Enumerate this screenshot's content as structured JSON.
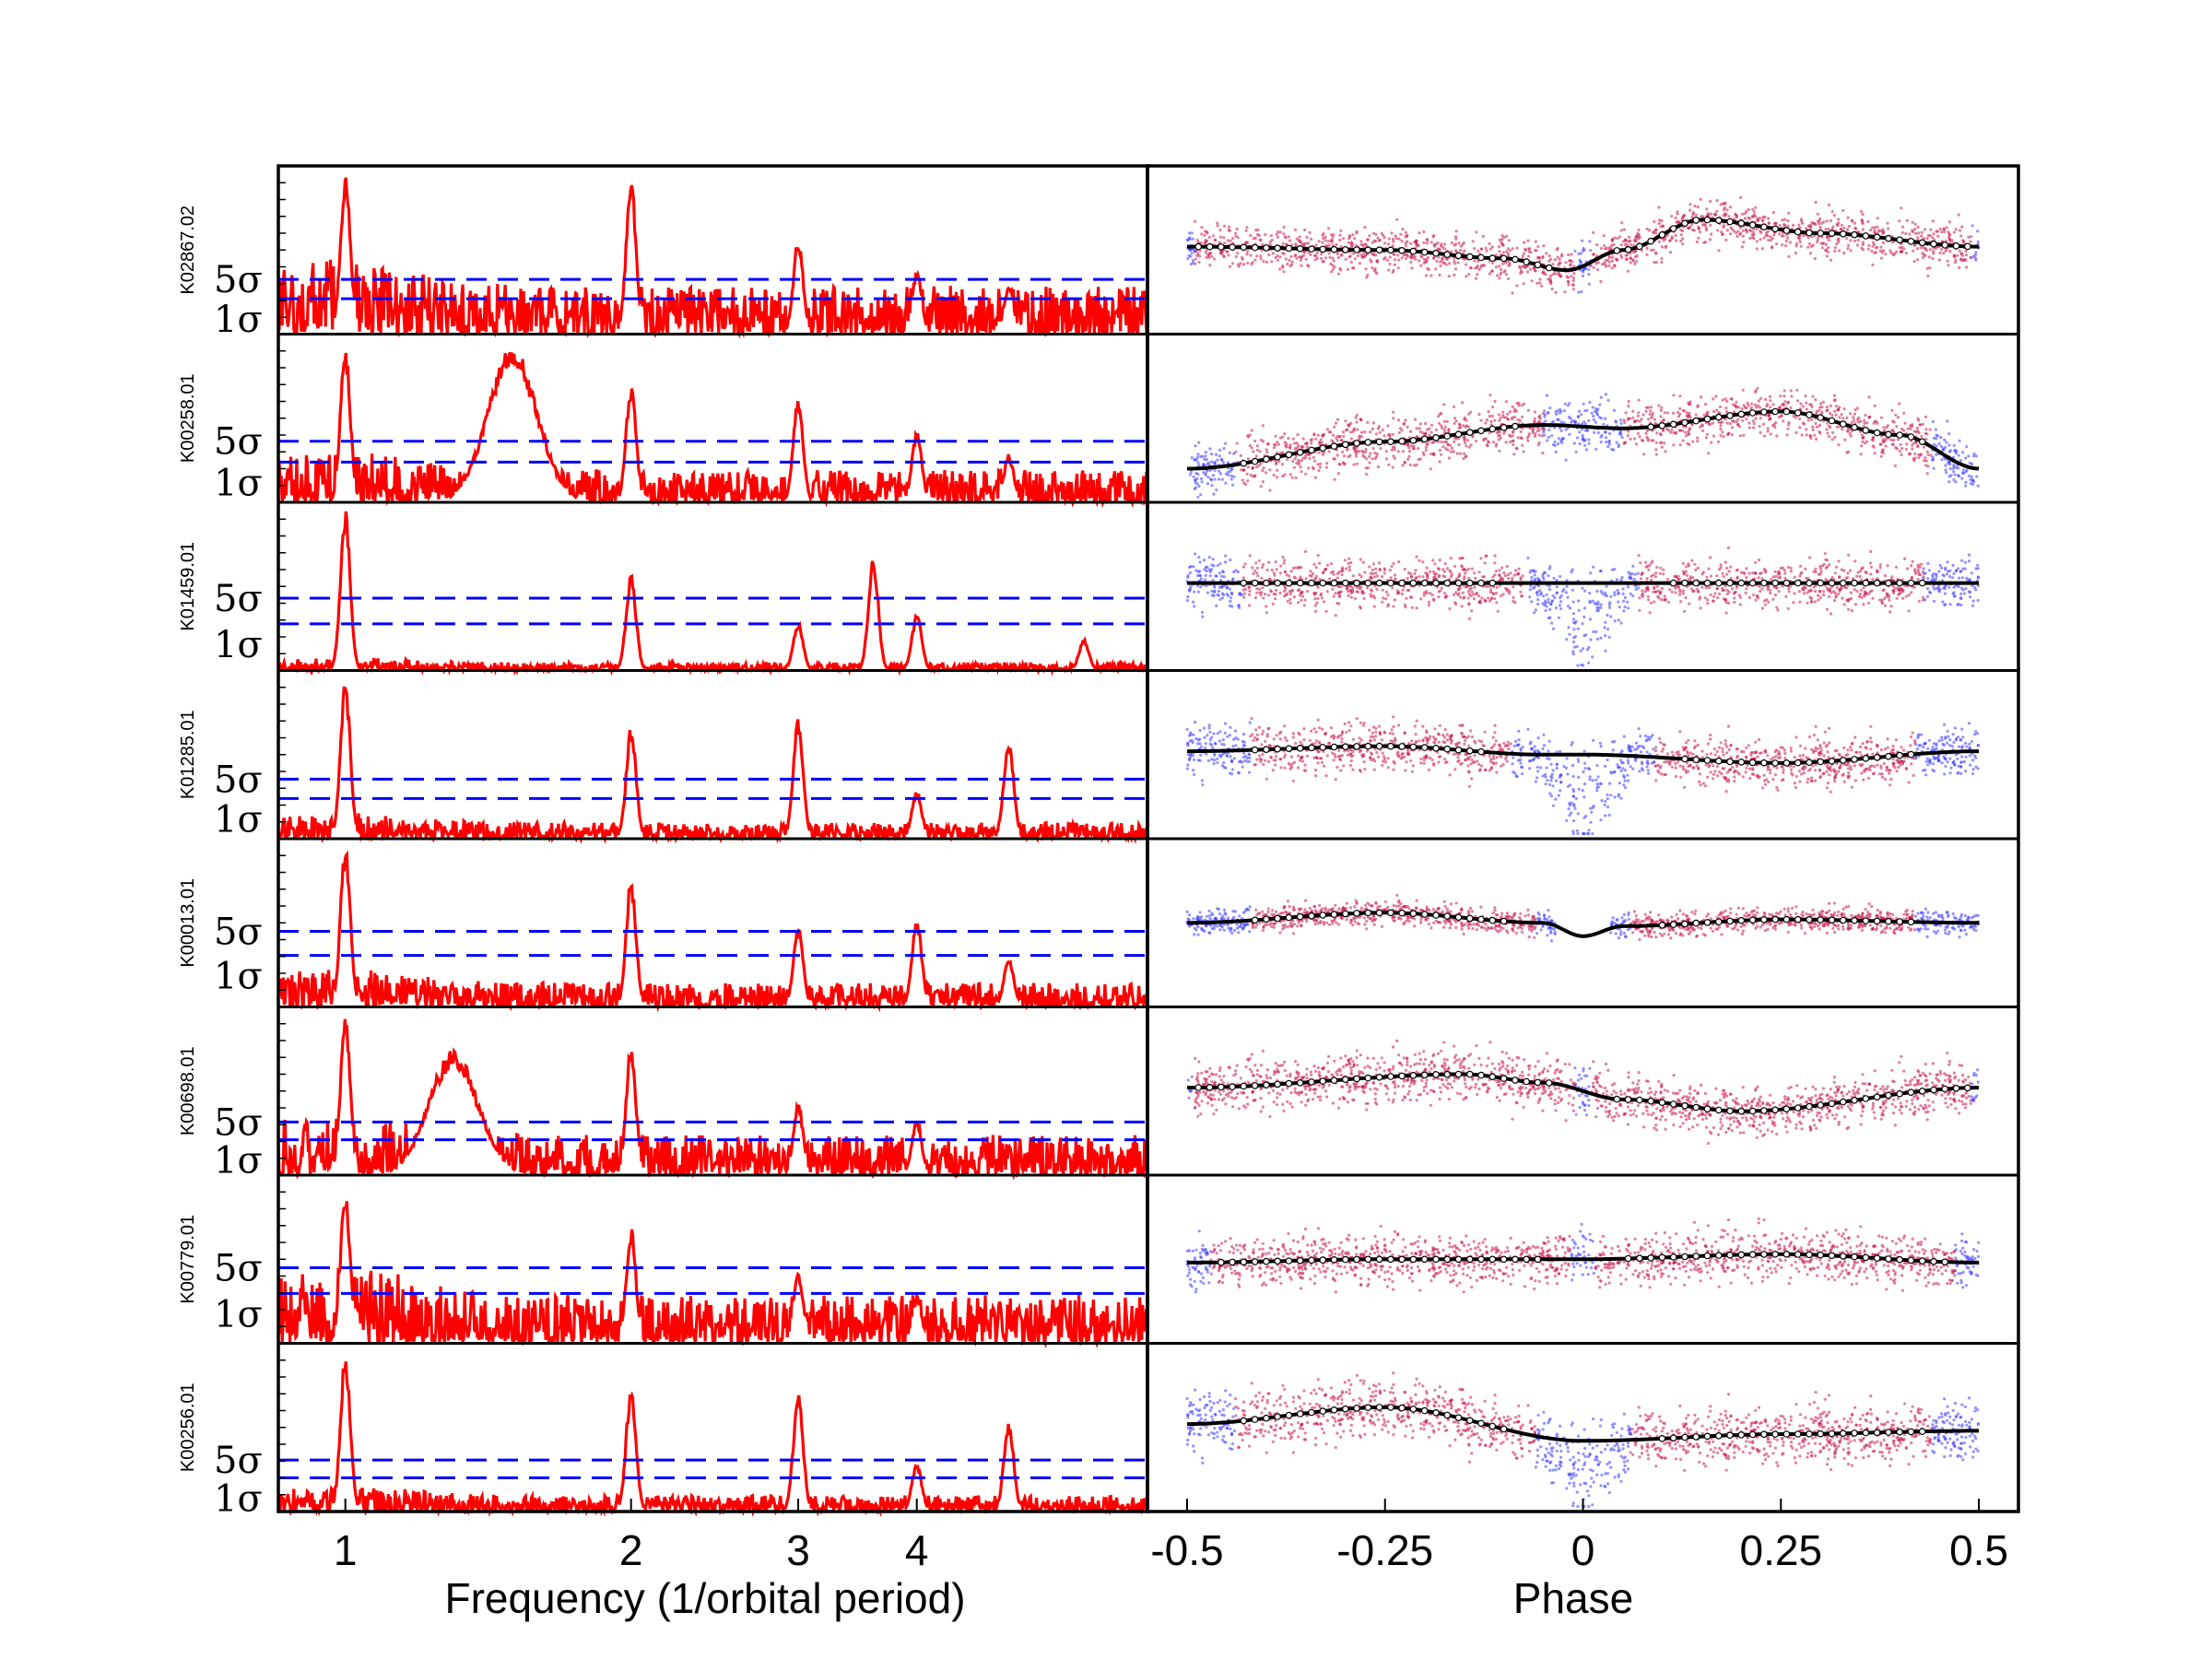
{
  "chart_data": [
    {
      "type": "line",
      "panel": "periodogram",
      "xlabel": "Frequency (1/orbital period)",
      "xscale": "log",
      "xlim": [
        0.85,
        7.0
      ],
      "xticks": [
        1,
        2,
        3,
        4
      ],
      "xtick_labels": [
        "1",
        "2",
        "3",
        "4"
      ],
      "sigma_labels": [
        "5σ",
        "1σ"
      ],
      "colors": {
        "power": "#ff0000",
        "threshold": "#0000ff"
      },
      "rows": [
        {
          "name": "K02867.02",
          "threshold_5sigma": 0.34,
          "threshold_1sigma": 0.22,
          "peaks": [
            {
              "f": 1.0,
              "p": 1.0
            },
            {
              "f": 2.0,
              "p": 0.97
            },
            {
              "f": 3.0,
              "p": 0.6
            },
            {
              "f": 4.0,
              "p": 0.4
            },
            {
              "f": 5.0,
              "p": 0.3
            }
          ],
          "noise": 0.3
        },
        {
          "name": "K00258.01",
          "threshold_5sigma": 0.38,
          "threshold_1sigma": 0.25,
          "peaks": [
            {
              "f": 1.0,
              "p": 0.97
            },
            {
              "f": 1.5,
              "p": 0.97
            },
            {
              "f": 2.0,
              "p": 0.75
            },
            {
              "f": 3.0,
              "p": 0.65
            },
            {
              "f": 4.0,
              "p": 0.45
            },
            {
              "f": 5.0,
              "p": 0.3
            }
          ],
          "noise": 0.2
        },
        {
          "name": "K01459.01",
          "threshold_5sigma": 0.45,
          "threshold_1sigma": 0.29,
          "peaks": [
            {
              "f": 1.0,
              "p": 1.0
            },
            {
              "f": 2.0,
              "p": 0.6
            },
            {
              "f": 3.0,
              "p": 0.3
            },
            {
              "f": 3.6,
              "p": 0.7
            },
            {
              "f": 4.0,
              "p": 0.35
            },
            {
              "f": 6.0,
              "p": 0.2
            }
          ],
          "noise": 0.05
        },
        {
          "name": "K01285.01",
          "threshold_5sigma": 0.37,
          "threshold_1sigma": 0.25,
          "peaks": [
            {
              "f": 1.0,
              "p": 1.0
            },
            {
              "f": 2.0,
              "p": 0.7
            },
            {
              "f": 3.0,
              "p": 0.75
            },
            {
              "f": 4.0,
              "p": 0.3
            },
            {
              "f": 5.0,
              "p": 0.62
            }
          ],
          "noise": 0.1
        },
        {
          "name": "K00013.01",
          "threshold_5sigma": 0.47,
          "threshold_1sigma": 0.32,
          "peaks": [
            {
              "f": 1.0,
              "p": 1.0
            },
            {
              "f": 2.0,
              "p": 0.8
            },
            {
              "f": 3.0,
              "p": 0.5
            },
            {
              "f": 4.0,
              "p": 0.55
            },
            {
              "f": 5.0,
              "p": 0.3
            }
          ],
          "noise": 0.15
        },
        {
          "name": "K00698.01",
          "threshold_5sigma": 0.33,
          "threshold_1sigma": 0.22,
          "peaks": [
            {
              "f": 1.0,
              "p": 1.0
            },
            {
              "f": 1.3,
              "p": 0.78
            },
            {
              "f": 2.0,
              "p": 0.82
            },
            {
              "f": 3.0,
              "p": 0.45
            },
            {
              "f": 4.0,
              "p": 0.35
            }
          ],
          "noise": 0.25
        },
        {
          "name": "K00779.01",
          "threshold_5sigma": 0.47,
          "threshold_1sigma": 0.31,
          "peaks": [
            {
              "f": 1.0,
              "p": 0.95
            },
            {
              "f": 2.0,
              "p": 0.72
            },
            {
              "f": 3.0,
              "p": 0.45
            },
            {
              "f": 4.0,
              "p": 0.3
            }
          ],
          "noise": 0.3
        },
        {
          "name": "K00256.01",
          "threshold_5sigma": 0.32,
          "threshold_1sigma": 0.21,
          "peaks": [
            {
              "f": 1.0,
              "p": 1.0
            },
            {
              "f": 2.0,
              "p": 0.78
            },
            {
              "f": 3.0,
              "p": 0.75
            },
            {
              "f": 4.0,
              "p": 0.3
            },
            {
              "f": 5.0,
              "p": 0.55
            }
          ],
          "noise": 0.1
        }
      ]
    },
    {
      "type": "scatter",
      "panel": "phase-folded light curve",
      "xlabel": "Phase",
      "xlim": [
        -0.55,
        0.55
      ],
      "xticks": [
        -0.5,
        -0.25,
        0,
        0.25,
        0.5
      ],
      "xtick_labels": [
        "-0.5",
        "-0.25",
        "0",
        "0.25",
        "0.5"
      ],
      "colors": {
        "in_fit": "#c8174f",
        "excluded": "#3b3bff",
        "model": "#000000",
        "binned": "#ffffff"
      },
      "rows": [
        {
          "name": "K02867.02",
          "model": [
            [
              -0.5,
              0.52
            ],
            [
              -0.25,
              0.5
            ],
            [
              -0.1,
              0.45
            ],
            [
              -0.02,
              0.38
            ],
            [
              0.05,
              0.5
            ],
            [
              0.15,
              0.68
            ],
            [
              0.3,
              0.6
            ],
            [
              0.5,
              0.52
            ]
          ],
          "excluded_core": 0.01,
          "excluded_edge": 0.49,
          "spread": 0.26
        },
        {
          "name": "K00258.01",
          "model": [
            [
              -0.5,
              0.2
            ],
            [
              -0.25,
              0.36
            ],
            [
              -0.05,
              0.46
            ],
            [
              0.05,
              0.44
            ],
            [
              0.25,
              0.54
            ],
            [
              0.4,
              0.4
            ],
            [
              0.5,
              0.2
            ]
          ],
          "excluded_core": 0.05,
          "excluded_edge": 0.44,
          "spread": 0.3
        },
        {
          "name": "K01459.01",
          "model": [
            [
              -0.5,
              0.52
            ],
            [
              0,
              0.52
            ],
            [
              0.5,
              0.52
            ]
          ],
          "excluded_core": 0.07,
          "excluded_edge": 0.43,
          "spread": 0.3,
          "dip": 0.5
        },
        {
          "name": "K01285.01",
          "model": [
            [
              -0.5,
              0.52
            ],
            [
              -0.25,
              0.55
            ],
            [
              -0.05,
              0.5
            ],
            [
              0,
              0.5
            ],
            [
              0.25,
              0.45
            ],
            [
              0.5,
              0.52
            ]
          ],
          "excluded_core": 0.09,
          "excluded_edge": 0.42,
          "spread": 0.3,
          "dip": 0.6
        },
        {
          "name": "K00013.01",
          "model": [
            [
              -0.5,
              0.5
            ],
            [
              -0.25,
              0.56
            ],
            [
              -0.05,
              0.5
            ],
            [
              0,
              0.42
            ],
            [
              0.05,
              0.48
            ],
            [
              0.25,
              0.52
            ],
            [
              0.5,
              0.5
            ]
          ],
          "excluded_core": 0.06,
          "excluded_edge": 0.42,
          "spread": 0.15,
          "gap": 0.035
        },
        {
          "name": "K00698.01",
          "model": [
            [
              -0.5,
              0.52
            ],
            [
              -0.15,
              0.6
            ],
            [
              -0.05,
              0.55
            ],
            [
              0.05,
              0.45
            ],
            [
              0.2,
              0.38
            ],
            [
              0.5,
              0.52
            ]
          ],
          "excluded_core": 0.01,
          "excluded_edge": 0.49,
          "spread": 0.3
        },
        {
          "name": "K00779.01",
          "model": [
            [
              -0.5,
              0.48
            ],
            [
              -0.25,
              0.5
            ],
            [
              0,
              0.5
            ],
            [
              0.25,
              0.53
            ],
            [
              0.5,
              0.48
            ]
          ],
          "excluded_core": 0.015,
          "excluded_edge": 0.47,
          "spread": 0.3
        },
        {
          "name": "K00256.01",
          "model": [
            [
              -0.5,
              0.52
            ],
            [
              -0.25,
              0.62
            ],
            [
              0,
              0.42
            ],
            [
              0.25,
              0.46
            ],
            [
              0.5,
              0.48
            ]
          ],
          "excluded_core": 0.06,
          "excluded_edge": 0.44,
          "spread": 0.35,
          "dip": 0.4
        }
      ]
    }
  ]
}
